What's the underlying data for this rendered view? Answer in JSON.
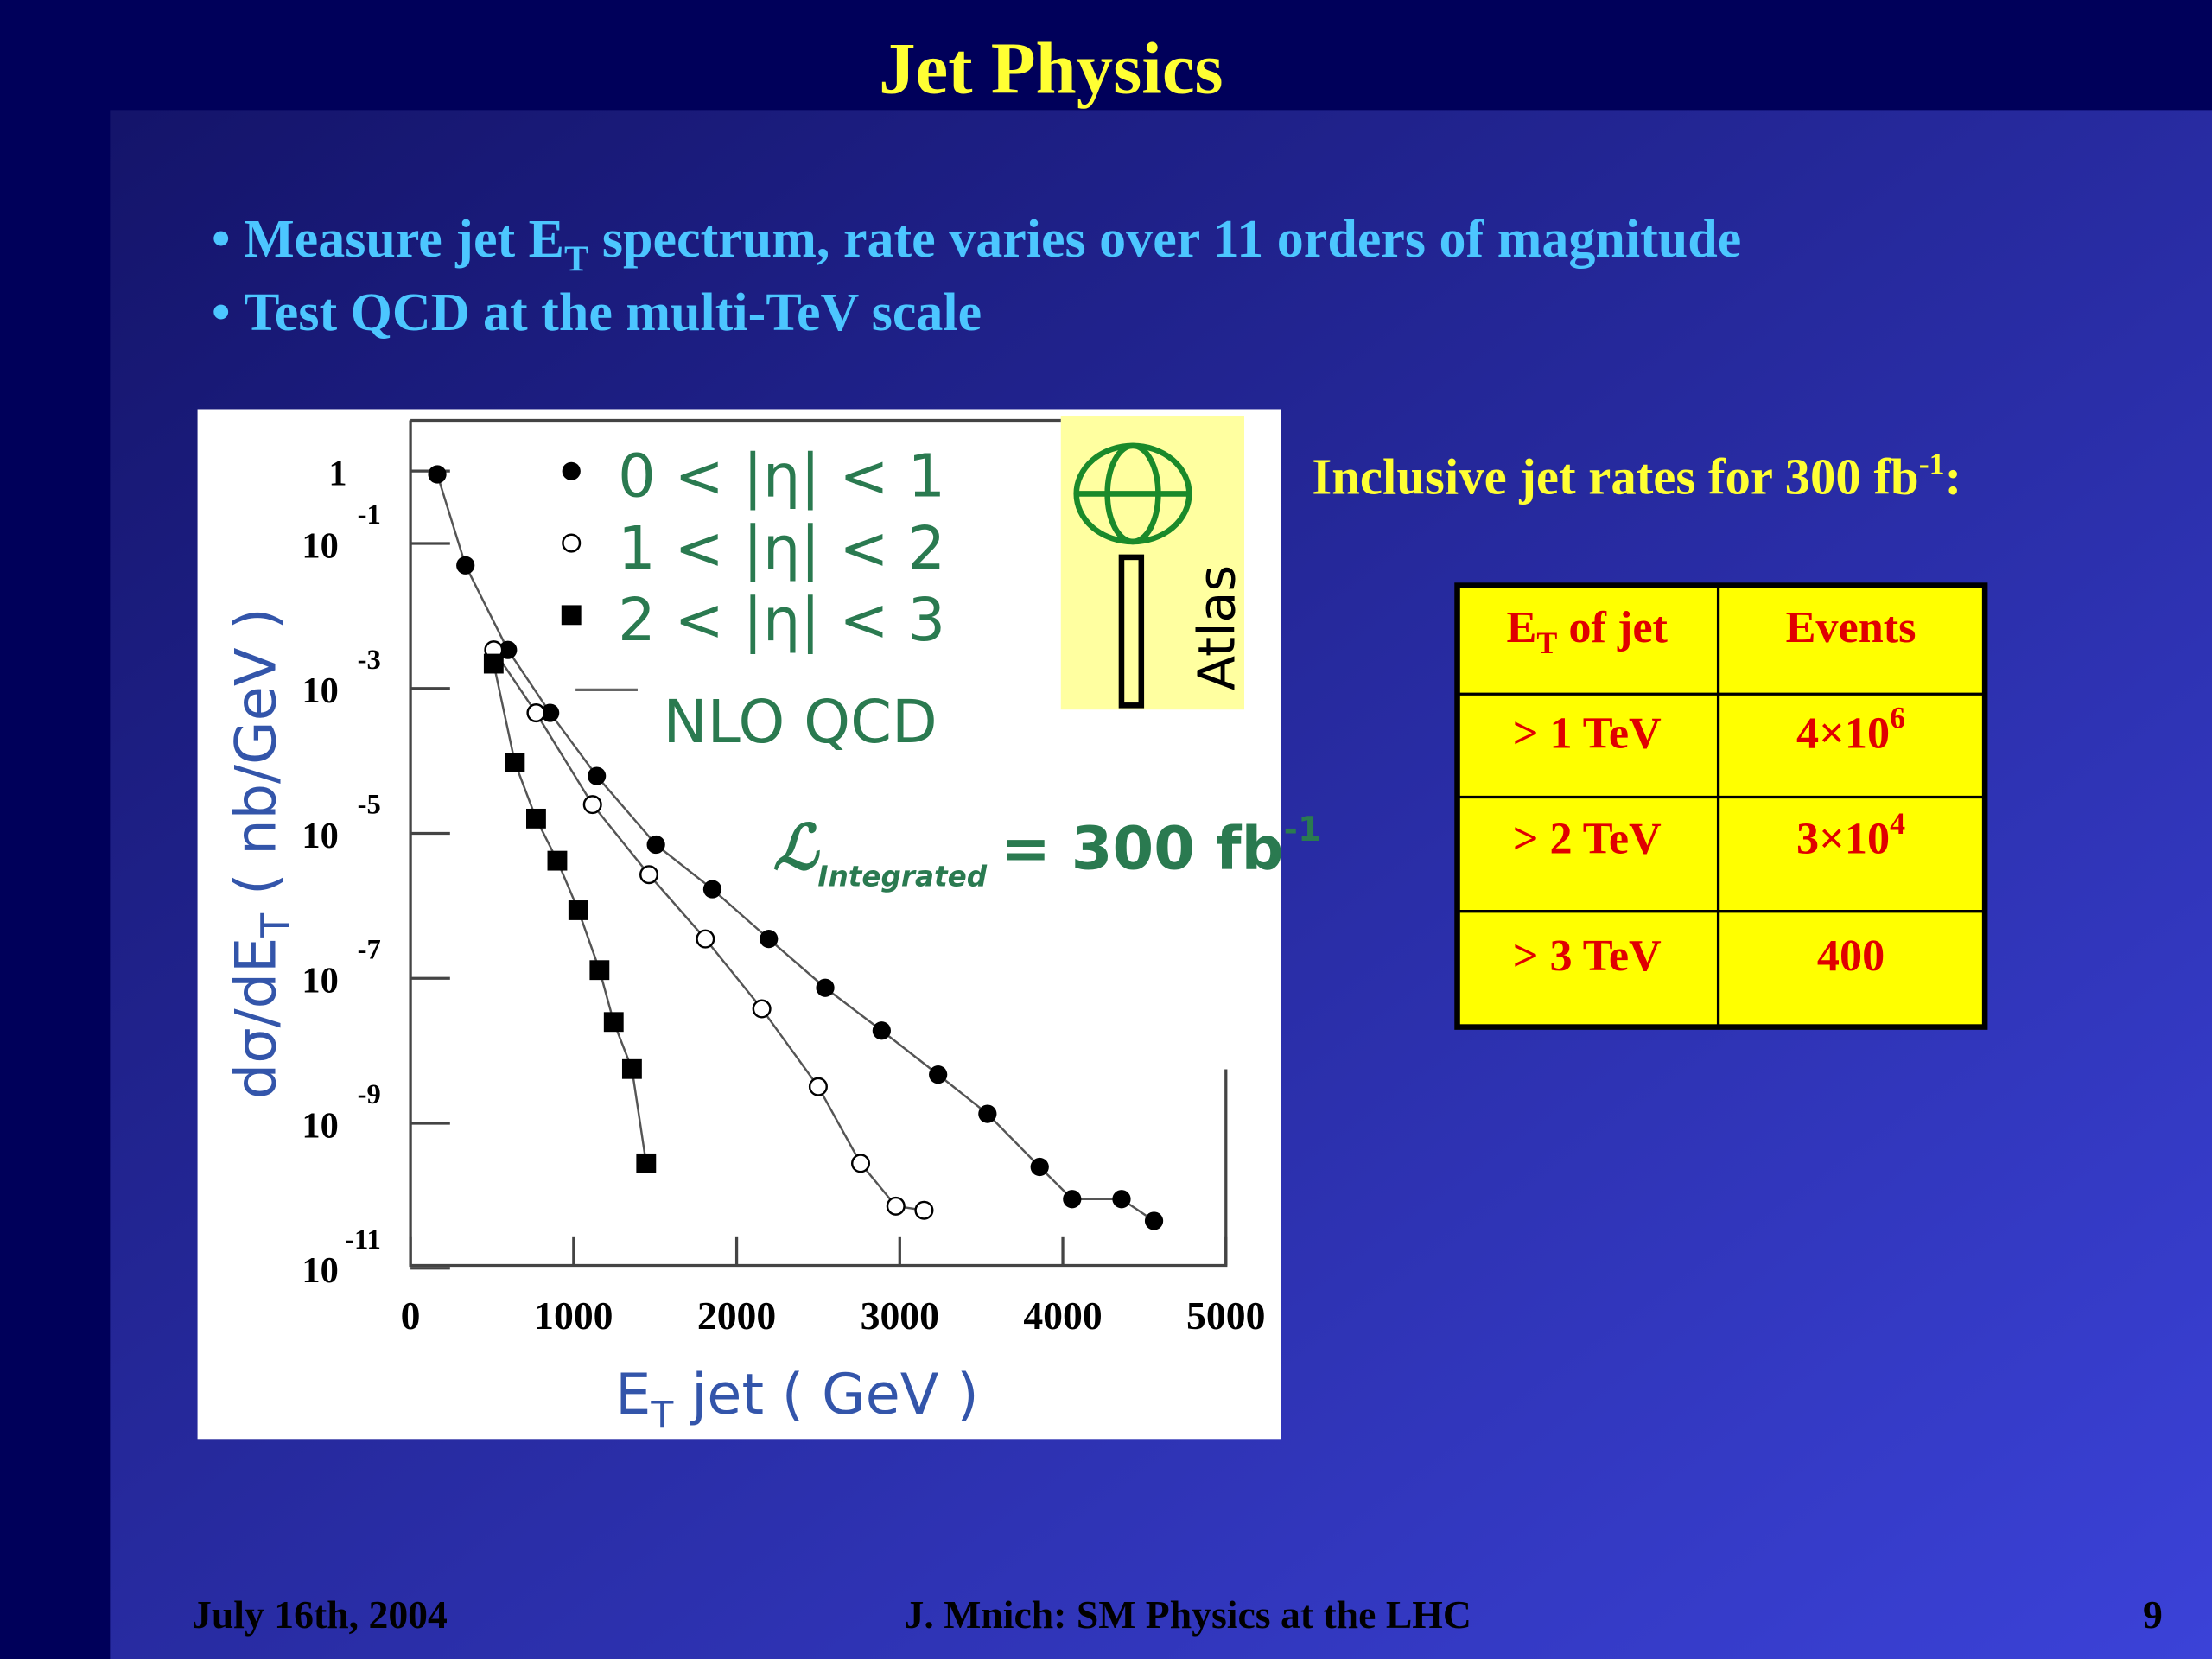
{
  "header": {
    "title": "Jet Physics"
  },
  "bullets": [
    {
      "text": "Measure jet E",
      "sub": "T",
      "rest": " spectrum, rate varies over 11 orders of magnitude"
    },
    {
      "text": "Test QCD at the multi-TeV scale"
    }
  ],
  "chart_data": {
    "type": "scatter",
    "log_y": true,
    "x_label": {
      "text": "E",
      "sub": "T",
      "rest": " jet ( GeV )"
    },
    "y_label": {
      "text": "dσ/dE",
      "sub": "T",
      "rest": " ( nb/GeV )"
    },
    "xlim": [
      0,
      5000
    ],
    "xticks": [
      0,
      1000,
      2000,
      3000,
      4000,
      5000
    ],
    "ylim": [
      1e-11,
      5
    ],
    "yticks": [
      1,
      {
        "value": 0.1,
        "label": "10",
        "exponent": "-1"
      },
      {
        "value": 0.001,
        "label": "10",
        "exponent": "-3"
      },
      {
        "value": 1e-05,
        "label": "10",
        "exponent": "-5"
      },
      {
        "value": 1e-07,
        "label": "10",
        "exponent": "-7"
      },
      {
        "value": 1e-09,
        "label": "10",
        "exponent": "-9"
      },
      {
        "value": 1e-11,
        "label": "10",
        "exponent": "-11"
      }
    ],
    "series": [
      {
        "name": "0 < |η| < 1",
        "color": "#000000",
        "marker": "circle",
        "x": [
          164,
          337,
          597,
          856,
          1142,
          1505,
          1851,
          2197,
          2543,
          2889,
          3235,
          3538,
          3858,
          4057,
          4360,
          4559
        ],
        "values": [
          0.9,
          0.05,
          0.0034,
          0.00046,
          6.2e-05,
          7e-06,
          1.7e-06,
          3.5e-07,
          7.4e-08,
          1.9e-08,
          4.7e-09,
          1.35e-09,
          2.5e-10,
          9e-11,
          9e-11,
          4.5e-11
        ]
      },
      {
        "name": "1 < |η| < 2",
        "color": "#000000",
        "marker": "open-circle",
        "x": [
          510,
          770,
          1116,
          1462,
          1808,
          2154,
          2500,
          2760,
          2976,
          3149
        ],
        "values": [
          0.0034,
          0.00046,
          2.5e-05,
          2.7e-06,
          3.5e-07,
          3.8e-08,
          3.2e-09,
          2.8e-10,
          7.2e-11,
          6.3e-11
        ]
      },
      {
        "name": "2 < |η| < 3",
        "color": "#000000",
        "marker": "square",
        "x": [
          510,
          640,
          770,
          900,
          1029,
          1159,
          1246,
          1358,
          1445
        ],
        "values": [
          0.0022,
          9.5e-05,
          1.6e-05,
          4.2e-06,
          8.7e-07,
          1.3e-07,
          2.5e-08,
          5.6e-09,
          2.8e-10
        ]
      }
    ],
    "line_legend": "NLO QCD",
    "annotation": {
      "symbol": "ℒ",
      "sub": "Integrated",
      "text": "= 300 fb",
      "sup": "-1"
    },
    "logo_label": "Atlas"
  },
  "side": {
    "heading": {
      "text": "Inclusive jet rates for 300 fb",
      "sup": "-1",
      "rest": ":"
    }
  },
  "table": {
    "header": [
      {
        "text": "E",
        "sub": "T",
        "rest": " of jet"
      },
      {
        "text": "Events"
      }
    ],
    "rows": [
      [
        {
          "text": "> 1 TeV"
        },
        {
          "text": "4×10",
          "sup": "6"
        }
      ],
      [
        {
          "text": "> 2 TeV"
        },
        {
          "text": "3×10",
          "sup": "4"
        }
      ],
      [
        {
          "text": "> 3 TeV"
        },
        {
          "text": "400"
        }
      ]
    ]
  },
  "footer": {
    "date": "July 16th, 2004",
    "author": "J. Mnich: SM Physics at the LHC",
    "page": "9"
  }
}
